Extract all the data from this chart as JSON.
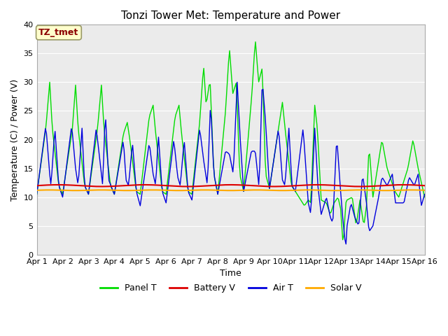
{
  "title": "Tonzi Tower Met: Temperature and Power",
  "xlabel": "Time",
  "ylabel": "Temperature (C) / Power (V)",
  "annotation_text": "TZ_tmet",
  "annotation_color": "#8B0000",
  "annotation_bg": "#FFFFCC",
  "annotation_border": "#999966",
  "ylim": [
    0,
    40
  ],
  "yticks": [
    0,
    5,
    10,
    15,
    20,
    25,
    30,
    35,
    40
  ],
  "xtick_labels": [
    "Apr 1",
    "Apr 2",
    "Apr 3",
    "Apr 4",
    "Apr 5",
    "Apr 6",
    "Apr 7",
    "Apr 8",
    "Apr 9",
    "Apr 10",
    "Apr 11",
    "Apr 12",
    "Apr 13",
    "Apr 14",
    "Apr 15",
    "Apr 16"
  ],
  "panel_t_color": "#00DD00",
  "battery_v_color": "#DD0000",
  "air_t_color": "#0000DD",
  "solar_v_color": "#FFAA00",
  "bg_color": "#EBEBEB",
  "grid_color": "#FFFFFF",
  "title_fontsize": 11,
  "axis_fontsize": 9,
  "tick_fontsize": 8,
  "legend_fontsize": 9
}
